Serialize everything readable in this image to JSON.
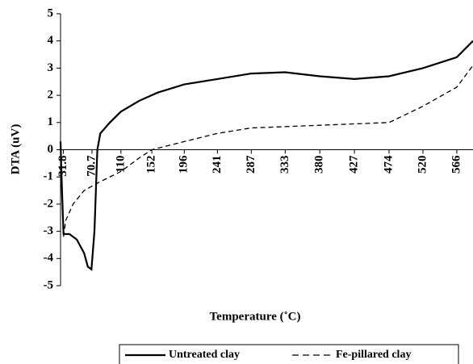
{
  "chart_data": {
    "type": "line",
    "x_label": "Temperature (˚C)",
    "y_label": "DTA (uV)",
    "xlim": [
      28,
      588
    ],
    "xticks": [
      31.8,
      70.7,
      110,
      152,
      196,
      241,
      287,
      333,
      380,
      427,
      474,
      520,
      566
    ],
    "ylim": [
      -5,
      5
    ],
    "yticks": [
      -5,
      -4,
      -3,
      -2,
      -1,
      0,
      1,
      2,
      3,
      4,
      5
    ],
    "grid": false,
    "legend": "bottom",
    "series": [
      {
        "name": "Untreated clay",
        "color": "#000000",
        "dash": "solid",
        "x": [
          28,
          30,
          32,
          40,
          50,
          60,
          65,
          70,
          74,
          78,
          82,
          95,
          110,
          135,
          160,
          196,
          241,
          287,
          333,
          380,
          427,
          474,
          520,
          566,
          588
        ],
        "values": [
          0.3,
          -1.5,
          -3.1,
          -3.1,
          -3.3,
          -3.8,
          -4.3,
          -4.4,
          -3.0,
          0,
          0.6,
          1.0,
          1.4,
          1.8,
          2.1,
          2.4,
          2.6,
          2.8,
          2.85,
          2.7,
          2.6,
          2.7,
          3.0,
          3.4,
          4.0
        ]
      },
      {
        "name": "Fe-pillared clay",
        "color": "#000000",
        "dash": "dashed",
        "x": [
          32,
          35,
          45,
          60,
          80,
          110,
          135,
          152,
          196,
          241,
          287,
          333,
          380,
          427,
          474,
          520,
          566,
          588
        ],
        "values": [
          -3.2,
          -2.6,
          -2.0,
          -1.5,
          -1.2,
          -0.8,
          -0.3,
          0,
          0.3,
          0.6,
          0.8,
          0.85,
          0.9,
          0.95,
          1.0,
          1.6,
          2.3,
          3.1
        ]
      }
    ]
  }
}
